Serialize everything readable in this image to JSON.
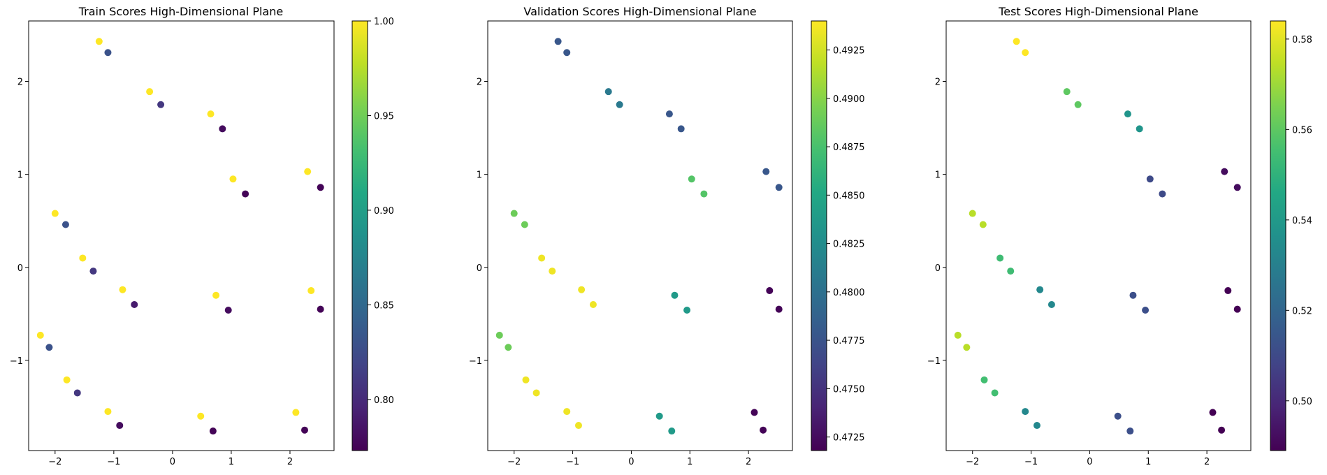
{
  "chart_data": [
    {
      "type": "scatter",
      "title": "Train Scores High-Dimensional Plane",
      "xlabel": "",
      "ylabel": "",
      "xlim": [
        -2.45,
        2.75
      ],
      "ylim": [
        -1.97,
        2.65
      ],
      "xticks": [
        -2,
        -1,
        0,
        1,
        2
      ],
      "xtick_labels": [
        "−2",
        "−1",
        "0",
        "1",
        "2"
      ],
      "yticks": [
        -1,
        0,
        1,
        2
      ],
      "ytick_labels": [
        "−1",
        "0",
        "1",
        "2"
      ],
      "grid": false,
      "colormap": "viridis",
      "colorbar": {
        "range": [
          0.773,
          1.0
        ],
        "ticks": [
          0.8,
          0.85,
          0.9,
          0.95,
          1.0
        ],
        "tick_labels": [
          "0.80",
          "0.85",
          "0.90",
          "0.95",
          "1.00"
        ]
      },
      "points": [
        {
          "x": -1.25,
          "y": 2.43,
          "c": 1.0
        },
        {
          "x": -1.1,
          "y": 2.31,
          "c": 0.83
        },
        {
          "x": -0.39,
          "y": 1.89,
          "c": 1.0
        },
        {
          "x": -0.2,
          "y": 1.75,
          "c": 0.81
        },
        {
          "x": 0.65,
          "y": 1.65,
          "c": 1.0
        },
        {
          "x": 0.85,
          "y": 1.49,
          "c": 0.78
        },
        {
          "x": 2.3,
          "y": 1.03,
          "c": 1.0
        },
        {
          "x": 2.52,
          "y": 0.86,
          "c": 0.775
        },
        {
          "x": 1.03,
          "y": 0.95,
          "c": 1.0
        },
        {
          "x": 1.24,
          "y": 0.79,
          "c": 0.775
        },
        {
          "x": -2.0,
          "y": 0.58,
          "c": 1.0
        },
        {
          "x": -1.82,
          "y": 0.46,
          "c": 0.83
        },
        {
          "x": -1.53,
          "y": 0.1,
          "c": 1.0
        },
        {
          "x": -1.35,
          "y": -0.04,
          "c": 0.81
        },
        {
          "x": -0.85,
          "y": -0.24,
          "c": 1.0
        },
        {
          "x": -0.65,
          "y": -0.4,
          "c": 0.79
        },
        {
          "x": 0.74,
          "y": -0.3,
          "c": 1.0
        },
        {
          "x": 0.95,
          "y": -0.46,
          "c": 0.78
        },
        {
          "x": 2.36,
          "y": -0.25,
          "c": 1.0
        },
        {
          "x": 2.52,
          "y": -0.45,
          "c": 0.775
        },
        {
          "x": -2.25,
          "y": -0.73,
          "c": 1.0
        },
        {
          "x": -2.1,
          "y": -0.86,
          "c": 0.83
        },
        {
          "x": -1.8,
          "y": -1.21,
          "c": 1.0
        },
        {
          "x": -1.62,
          "y": -1.35,
          "c": 0.81
        },
        {
          "x": -1.1,
          "y": -1.55,
          "c": 1.0
        },
        {
          "x": -0.9,
          "y": -1.7,
          "c": 0.78
        },
        {
          "x": 0.48,
          "y": -1.6,
          "c": 1.0
        },
        {
          "x": 0.69,
          "y": -1.76,
          "c": 0.775
        },
        {
          "x": 2.1,
          "y": -1.56,
          "c": 1.0
        },
        {
          "x": 2.25,
          "y": -1.75,
          "c": 0.775
        }
      ]
    },
    {
      "type": "scatter",
      "title": "Validation Scores High-Dimensional Plane",
      "xlabel": "",
      "ylabel": "",
      "xlim": [
        -2.45,
        2.75
      ],
      "ylim": [
        -1.97,
        2.65
      ],
      "xticks": [
        -2,
        -1,
        0,
        1,
        2
      ],
      "xtick_labels": [
        "−2",
        "−1",
        "0",
        "1",
        "2"
      ],
      "yticks": [
        -1,
        0,
        1,
        2
      ],
      "ytick_labels": [
        "−1",
        "0",
        "1",
        "2"
      ],
      "grid": false,
      "colormap": "viridis",
      "colorbar": {
        "range": [
          0.4718,
          0.494
        ],
        "ticks": [
          0.4725,
          0.475,
          0.4775,
          0.48,
          0.4825,
          0.485,
          0.4875,
          0.49,
          0.4925
        ],
        "tick_labels": [
          "0.4725",
          "0.4750",
          "0.4775",
          "0.4800",
          "0.4825",
          "0.4850",
          "0.4875",
          "0.4900",
          "0.4925"
        ]
      },
      "points": [
        {
          "x": -1.25,
          "y": 2.43,
          "c": 0.4778
        },
        {
          "x": -1.1,
          "y": 2.31,
          "c": 0.4778
        },
        {
          "x": -0.39,
          "y": 1.89,
          "c": 0.4808
        },
        {
          "x": -0.2,
          "y": 1.75,
          "c": 0.4808
        },
        {
          "x": 0.65,
          "y": 1.65,
          "c": 0.4778
        },
        {
          "x": 0.85,
          "y": 1.49,
          "c": 0.4778
        },
        {
          "x": 2.3,
          "y": 1.03,
          "c": 0.4778
        },
        {
          "x": 2.52,
          "y": 0.86,
          "c": 0.4778
        },
        {
          "x": 1.03,
          "y": 0.95,
          "c": 0.488
        },
        {
          "x": 1.24,
          "y": 0.79,
          "c": 0.488
        },
        {
          "x": -2.0,
          "y": 0.58,
          "c": 0.489
        },
        {
          "x": -1.82,
          "y": 0.46,
          "c": 0.489
        },
        {
          "x": -1.53,
          "y": 0.1,
          "c": 0.4935
        },
        {
          "x": -1.35,
          "y": -0.04,
          "c": 0.4935
        },
        {
          "x": -0.85,
          "y": -0.24,
          "c": 0.4935
        },
        {
          "x": -0.65,
          "y": -0.4,
          "c": 0.4935
        },
        {
          "x": 0.74,
          "y": -0.3,
          "c": 0.4838
        },
        {
          "x": 0.95,
          "y": -0.46,
          "c": 0.4838
        },
        {
          "x": 2.36,
          "y": -0.25,
          "c": 0.472
        },
        {
          "x": 2.52,
          "y": -0.45,
          "c": 0.472
        },
        {
          "x": -2.25,
          "y": -0.73,
          "c": 0.489
        },
        {
          "x": -2.1,
          "y": -0.86,
          "c": 0.489
        },
        {
          "x": -1.8,
          "y": -1.21,
          "c": 0.4935
        },
        {
          "x": -1.62,
          "y": -1.35,
          "c": 0.4935
        },
        {
          "x": -1.1,
          "y": -1.55,
          "c": 0.4935
        },
        {
          "x": -0.9,
          "y": -1.7,
          "c": 0.4935
        },
        {
          "x": 0.48,
          "y": -1.6,
          "c": 0.4838
        },
        {
          "x": 0.69,
          "y": -1.76,
          "c": 0.4838
        },
        {
          "x": 2.1,
          "y": -1.56,
          "c": 0.472
        },
        {
          "x": 2.25,
          "y": -1.75,
          "c": 0.472
        }
      ]
    },
    {
      "type": "scatter",
      "title": "Test Scores High-Dimensional Plane",
      "xlabel": "",
      "ylabel": "",
      "xlim": [
        -2.45,
        2.75
      ],
      "ylim": [
        -1.97,
        2.65
      ],
      "xticks": [
        -2,
        -1,
        0,
        1,
        2
      ],
      "xtick_labels": [
        "−2",
        "−1",
        "0",
        "1",
        "2"
      ],
      "yticks": [
        -1,
        0,
        1,
        2
      ],
      "ytick_labels": [
        "−1",
        "0",
        "1",
        "2"
      ],
      "grid": false,
      "colormap": "viridis",
      "colorbar": {
        "range": [
          0.489,
          0.584
        ],
        "ticks": [
          0.5,
          0.52,
          0.54,
          0.56,
          0.58
        ],
        "tick_labels": [
          "0.50",
          "0.52",
          "0.54",
          "0.56",
          "0.58"
        ]
      },
      "points": [
        {
          "x": -1.25,
          "y": 2.43,
          "c": 0.584
        },
        {
          "x": -1.1,
          "y": 2.31,
          "c": 0.584
        },
        {
          "x": -0.39,
          "y": 1.89,
          "c": 0.56
        },
        {
          "x": -0.2,
          "y": 1.75,
          "c": 0.56
        },
        {
          "x": 0.65,
          "y": 1.65,
          "c": 0.538
        },
        {
          "x": 0.85,
          "y": 1.49,
          "c": 0.538
        },
        {
          "x": 2.3,
          "y": 1.03,
          "c": 0.492
        },
        {
          "x": 2.52,
          "y": 0.86,
          "c": 0.492
        },
        {
          "x": 1.03,
          "y": 0.95,
          "c": 0.51
        },
        {
          "x": 1.24,
          "y": 0.79,
          "c": 0.51
        },
        {
          "x": -2.0,
          "y": 0.58,
          "c": 0.574
        },
        {
          "x": -1.82,
          "y": 0.46,
          "c": 0.574
        },
        {
          "x": -1.53,
          "y": 0.1,
          "c": 0.554
        },
        {
          "x": -1.35,
          "y": -0.04,
          "c": 0.554
        },
        {
          "x": -0.85,
          "y": -0.24,
          "c": 0.533
        },
        {
          "x": -0.65,
          "y": -0.4,
          "c": 0.533
        },
        {
          "x": 0.74,
          "y": -0.3,
          "c": 0.512
        },
        {
          "x": 0.95,
          "y": -0.46,
          "c": 0.512
        },
        {
          "x": 2.36,
          "y": -0.25,
          "c": 0.489
        },
        {
          "x": 2.52,
          "y": -0.45,
          "c": 0.489
        },
        {
          "x": -2.25,
          "y": -0.73,
          "c": 0.574
        },
        {
          "x": -2.1,
          "y": -0.86,
          "c": 0.574
        },
        {
          "x": -1.8,
          "y": -1.21,
          "c": 0.555
        },
        {
          "x": -1.62,
          "y": -1.35,
          "c": 0.555
        },
        {
          "x": -1.1,
          "y": -1.55,
          "c": 0.533
        },
        {
          "x": -0.9,
          "y": -1.7,
          "c": 0.533
        },
        {
          "x": 0.48,
          "y": -1.6,
          "c": 0.512
        },
        {
          "x": 0.69,
          "y": -1.76,
          "c": 0.512
        },
        {
          "x": 2.1,
          "y": -1.56,
          "c": 0.489
        },
        {
          "x": 2.25,
          "y": -1.75,
          "c": 0.489
        }
      ]
    }
  ]
}
